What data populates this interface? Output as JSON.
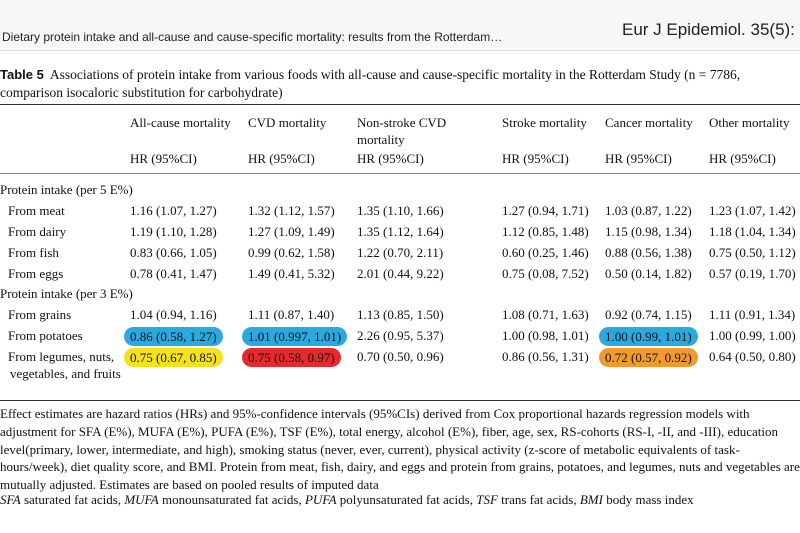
{
  "header": {
    "left": "Dietary protein intake and all-cause and cause-specific mortality: results from the Rotterdam…",
    "right": "Eur J Epidemiol. 35(5):"
  },
  "caption": {
    "label": "Table 5",
    "text": "Associations of protein intake from various foods with all-cause and cause-specific mortality in the Rotterdam Study (n = 7786, comparison isocaloric substitution for carbohydrate)"
  },
  "table": {
    "columns": [
      "All-cause mortality",
      "CVD mortality",
      "Non-stroke CVD mortality",
      "Stroke mortality",
      "Cancer mortality",
      "Other mortality"
    ],
    "subheaders": [
      "HR (95%CI)",
      "HR (95%CI)",
      "HR (95%CI)",
      "HR (95%CI)",
      "HR (95%CI)",
      "HR (95%CI)"
    ],
    "sections": [
      {
        "title": "Protein intake (per 5 E%)",
        "rows": [
          {
            "label": "From meat",
            "cells": [
              "1.16 (1.07, 1.27)",
              "1.32 (1.12, 1.57)",
              "1.35 (1.10, 1.66)",
              "1.27 (0.94, 1.71)",
              "1.03 (0.87, 1.22)",
              "1.23 (1.07, 1.42)"
            ]
          },
          {
            "label": "From dairy",
            "cells": [
              "1.19 (1.10, 1.28)",
              "1.27 (1.09, 1.49)",
              "1.35 (1.12, 1.64)",
              "1.12 (0.85, 1.48)",
              "1.15 (0.98, 1.34)",
              "1.18 (1.04, 1.34)"
            ]
          },
          {
            "label": "From fish",
            "cells": [
              "0.83 (0.66, 1.05)",
              "0.99 (0.62, 1.58)",
              "1.22 (0.70, 2.11)",
              "0.60 (0.25, 1.46)",
              "0.88 (0.56, 1.38)",
              "0.75 (0.50, 1.12)"
            ]
          },
          {
            "label": "From eggs",
            "cells": [
              "0.78 (0.41, 1.47)",
              "1.49 (0.41, 5.32)",
              "2.01 (0.44, 9.22)",
              "0.75 (0.08, 7.52)",
              "0.50 (0.14, 1.82)",
              "0.57 (0.19, 1.70)"
            ]
          }
        ]
      },
      {
        "title": "Protein intake (per 3 E%)",
        "rows": [
          {
            "label": "From grains",
            "cells": [
              "1.04 (0.94, 1.16)",
              "1.11 (0.87, 1.40)",
              "1.13 (0.85, 1.50)",
              "1.08 (0.71, 1.63)",
              "0.92 (0.74, 1.15)",
              "1.11 (0.91, 1.34)"
            ]
          },
          {
            "label": "From potatoes",
            "cells": [
              "0.86 (0.58, 1.27)",
              "1.01 (0.997, 1.01)",
              "2.26 (0.95, 5.37)",
              "1.00 (0.98, 1.01)",
              "1.00 (0.99, 1.01)",
              "1.00 (0.99, 1.00)"
            ]
          },
          {
            "label": "From legumes, nuts, vegetables, and fruits",
            "cells": [
              "0.75 (0.67, 0.85)",
              "0.75 (0.58, 0.97)",
              "0.70 (0.50, 0.96)",
              "0.86 (0.56, 1.31)",
              "0.72 (0.57, 0.92)",
              "0.64 (0.50, 0.80)"
            ]
          }
        ]
      }
    ]
  },
  "footnotes": {
    "text": "Effect estimates are hazard ratios (HRs) and 95%-confidence intervals (95%CIs) derived from Cox proportional hazards regression models with adjustment for SFA (E%), MUFA (E%), PUFA (E%), TSF (E%), total energy, alcohol (E%), fiber, age, sex, RS-cohorts (RS-I, -II, and -III), education level(primary, lower, intermediate, and high), smoking status (never, ever, current), physical activity (z-score of metabolic equivalents of task-hours/week), diet quality score, and BMI. Protein from meat, fish, dairy, and eggs and protein from grains, potatoes, and legumes, nuts and vegetables are mutually adjusted. Estimates are based on pooled results of imputed data",
    "abbreviations": [
      {
        "abbr": "SFA",
        "text": "saturated fat acids,"
      },
      {
        "abbr": "MUFA",
        "text": "monounsaturated fat acids,"
      },
      {
        "abbr": "PUFA",
        "text": "polyunsaturated fat acids,"
      },
      {
        "abbr": "TSF",
        "text": "trans fat acids,"
      },
      {
        "abbr": "BMI",
        "text": "body mass index"
      }
    ]
  }
}
